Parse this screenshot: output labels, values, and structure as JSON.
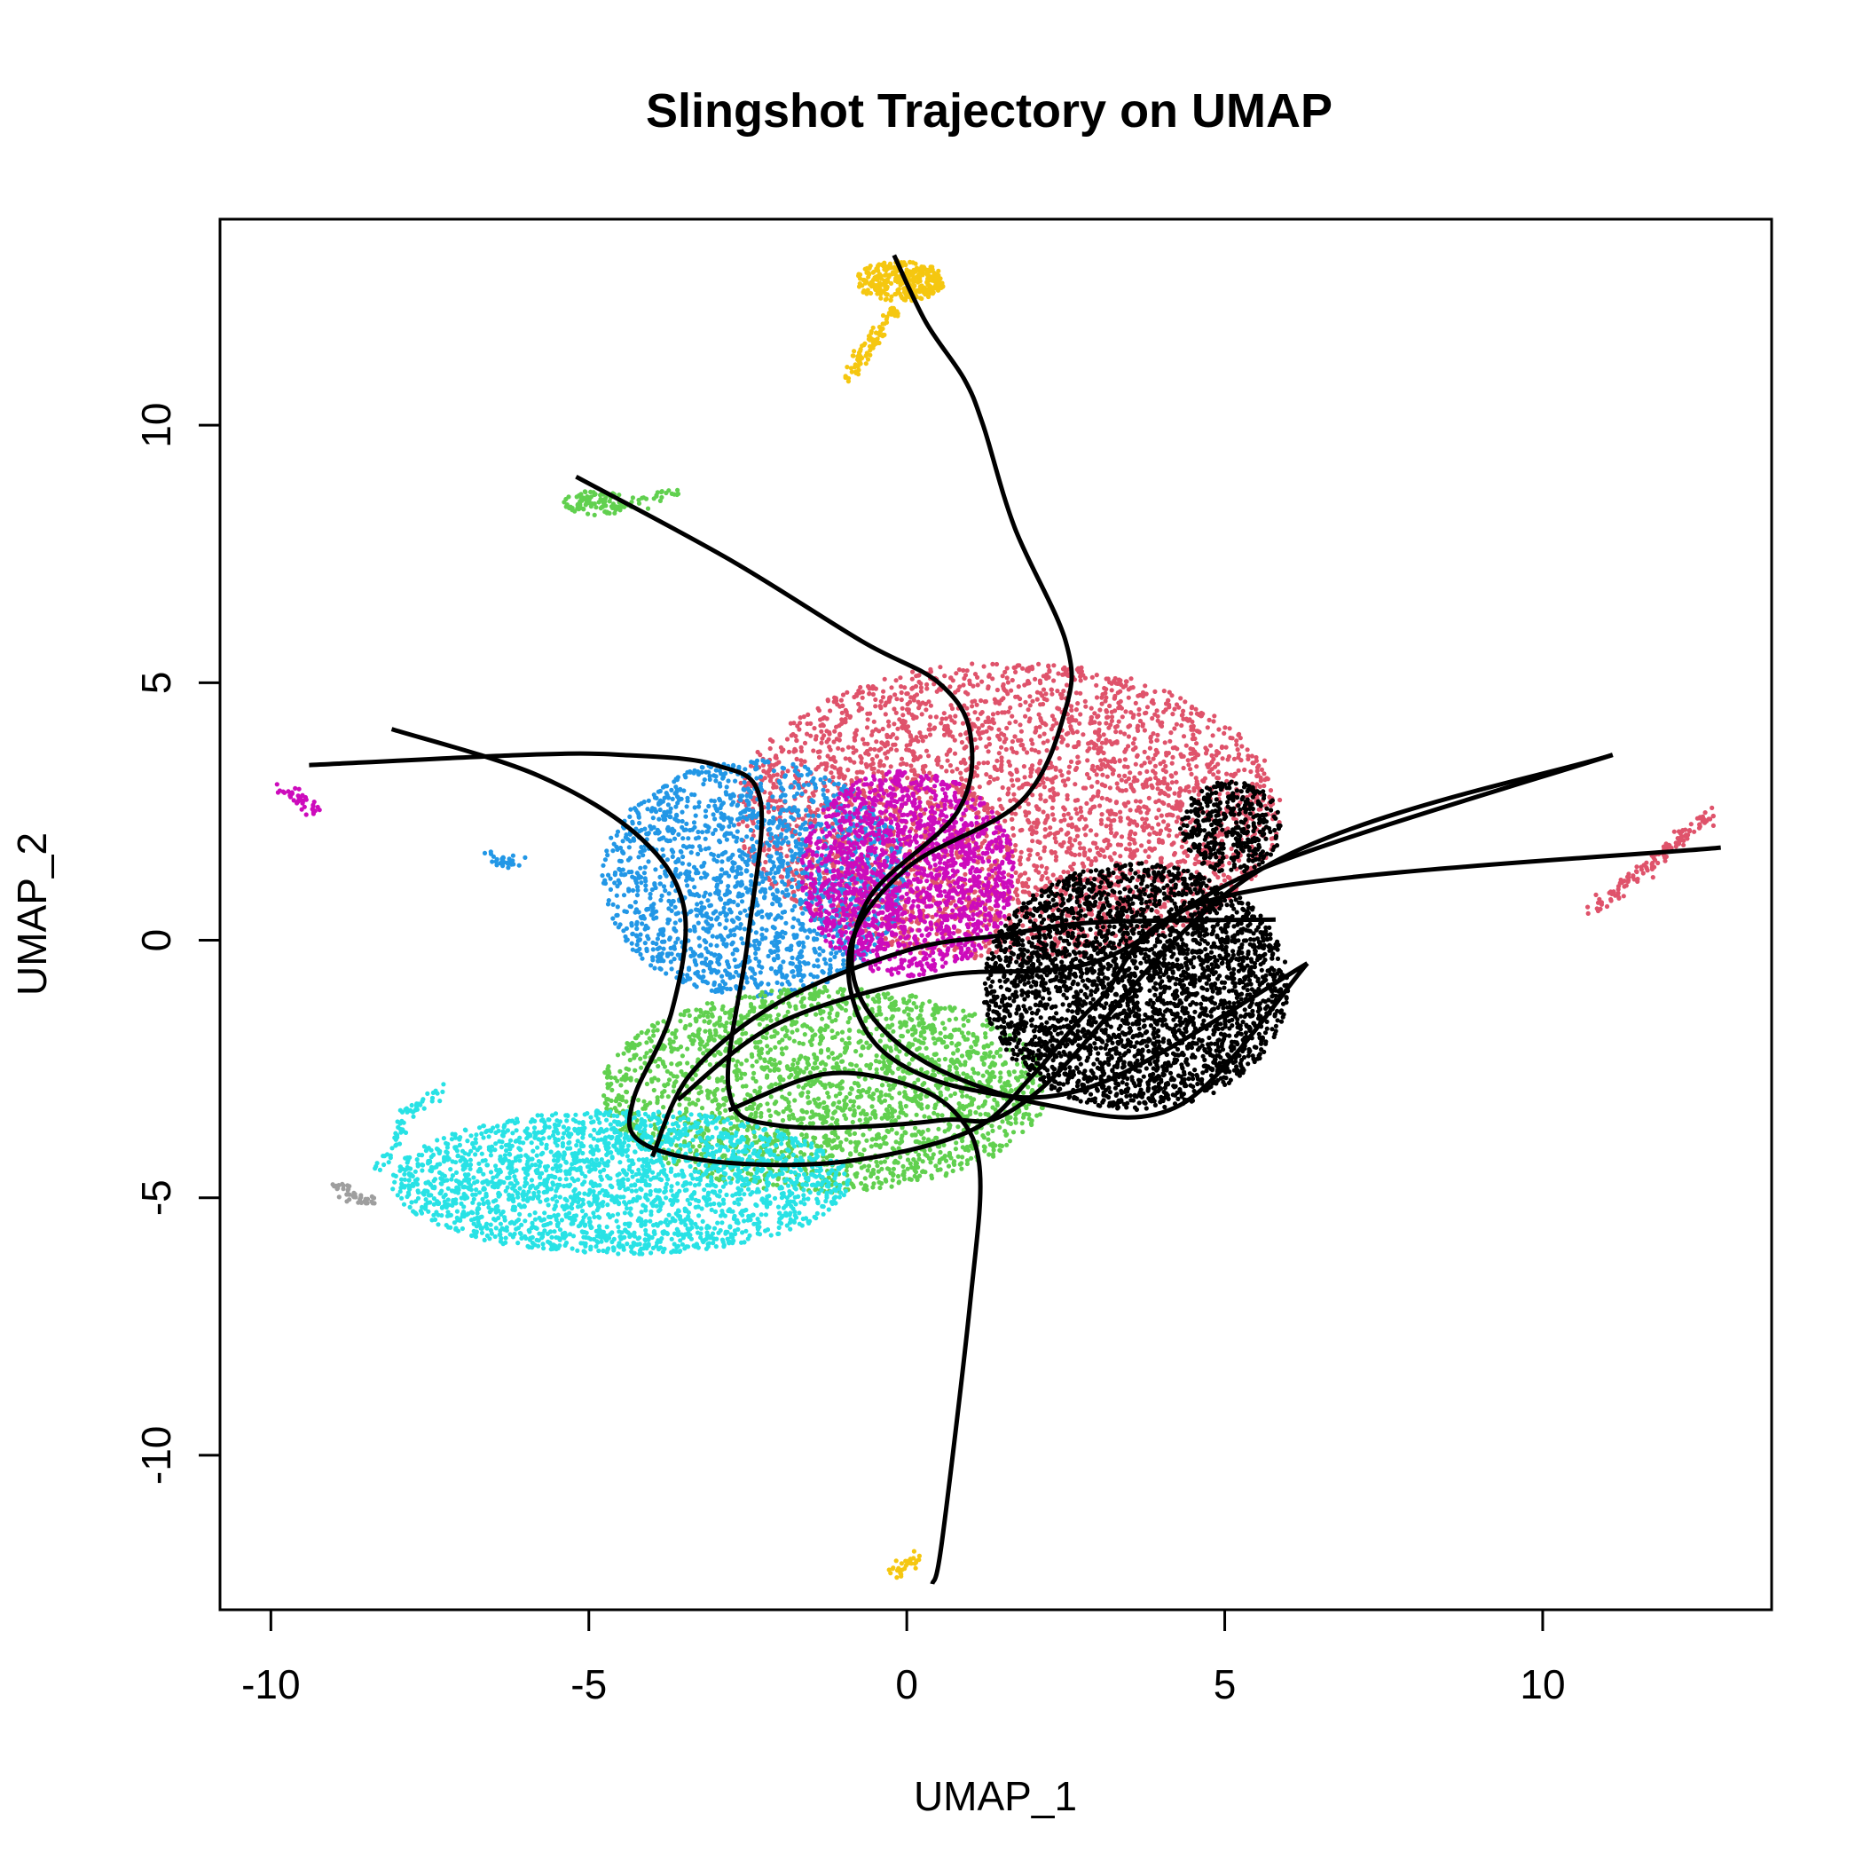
{
  "chart_data": {
    "type": "scatter",
    "title": "Slingshot Trajectory on UMAP",
    "xlabel": "UMAP_1",
    "ylabel": "UMAP_2",
    "xlim": [
      -10.8,
      13.6
    ],
    "ylim": [
      -13.0,
      14.0
    ],
    "xticks": [
      -10,
      -5,
      0,
      5,
      10
    ],
    "yticks": [
      -10,
      -5,
      0,
      5,
      10
    ],
    "grid": false,
    "legend": "none",
    "clusters": [
      {
        "color": "#DF536B",
        "shape": "ellipse",
        "cx": 1.6,
        "cy": 2.5,
        "rx": 4.3,
        "ry": 2.9,
        "n": 3400
      },
      {
        "color": "#2297E6",
        "shape": "ellipse",
        "cx": -2.4,
        "cy": 1.2,
        "rx": 2.4,
        "ry": 2.3,
        "n": 1800
      },
      {
        "color": "#CD0BBC",
        "shape": "ellipse",
        "cx": 0.0,
        "cy": 1.3,
        "rx": 1.7,
        "ry": 2.0,
        "n": 1700
      },
      {
        "color": "#61D04F",
        "shape": "ellipse",
        "cx": -1.3,
        "cy": -2.9,
        "rx": 3.5,
        "ry": 2.0,
        "n": 2400
      },
      {
        "color": "#28E2E5",
        "shape": "ellipse",
        "cx": -4.5,
        "cy": -4.7,
        "rx": 3.6,
        "ry": 1.4,
        "n": 2300
      },
      {
        "color": "#000000",
        "shape": "ellipse",
        "cx": 3.6,
        "cy": -0.9,
        "rx": 2.4,
        "ry": 2.4,
        "n": 3200
      },
      {
        "color": "#000000",
        "shape": "ellipse",
        "cx": 5.1,
        "cy": 2.2,
        "rx": 0.8,
        "ry": 0.9,
        "n": 380
      },
      {
        "color": "#F5C710",
        "shape": "ellipse",
        "cx": -0.1,
        "cy": 12.8,
        "rx": 0.7,
        "ry": 0.4,
        "n": 320
      },
      {
        "color": "#F5C710",
        "shape": "line",
        "from": [
          -0.9,
          10.9
        ],
        "to": [
          -0.2,
          12.3
        ],
        "n": 90
      },
      {
        "color": "#61D04F",
        "shape": "ellipse",
        "cx": -4.9,
        "cy": 8.5,
        "rx": 0.5,
        "ry": 0.25,
        "n": 90
      },
      {
        "color": "#61D04F",
        "shape": "line",
        "from": [
          -4.6,
          8.4
        ],
        "to": [
          -3.6,
          8.7
        ],
        "n": 30
      },
      {
        "color": "#CD0BBC",
        "shape": "line",
        "from": [
          -9.8,
          2.95
        ],
        "to": [
          -9.3,
          2.5
        ],
        "n": 45
      },
      {
        "color": "#2297E6",
        "shape": "line",
        "from": [
          -6.6,
          1.6
        ],
        "to": [
          -6.1,
          1.5
        ],
        "n": 30
      },
      {
        "color": "#28E2E5",
        "shape": "line",
        "from": [
          -8.0,
          -3.4
        ],
        "to": [
          -7.3,
          -2.9
        ],
        "n": 30
      },
      {
        "color": "#28E2E5",
        "shape": "line",
        "from": [
          -8.3,
          -4.5
        ],
        "to": [
          -7.9,
          -3.5
        ],
        "n": 30
      },
      {
        "color": "#9E9E9E",
        "shape": "line",
        "from": [
          -9.0,
          -4.8
        ],
        "to": [
          -8.4,
          -5.1
        ],
        "n": 40
      },
      {
        "color": "#DF536B",
        "shape": "line",
        "from": [
          10.8,
          0.55
        ],
        "to": [
          12.7,
          2.5
        ],
        "n": 130
      },
      {
        "color": "#F5C710",
        "shape": "line",
        "from": [
          -0.25,
          -12.3
        ],
        "to": [
          0.15,
          -12.0
        ],
        "n": 30
      }
    ],
    "curves": [
      [
        [
          -0.2,
          13.3
        ],
        [
          0.3,
          12.0
        ],
        [
          0.9,
          10.9
        ],
        [
          1.2,
          10.0
        ],
        [
          1.7,
          8.0
        ],
        [
          2.5,
          5.8
        ],
        [
          2.5,
          4.5
        ],
        [
          1.8,
          2.7
        ],
        [
          0.0,
          1.4
        ],
        [
          -0.9,
          -0.2
        ],
        [
          -0.5,
          -2.0
        ],
        [
          1.0,
          -2.9
        ],
        [
          3.0,
          -2.8
        ],
        [
          6.3,
          -0.45
        ]
      ],
      [
        [
          -5.2,
          9.0
        ],
        [
          -2.8,
          7.4
        ],
        [
          -0.7,
          5.8
        ],
        [
          0.5,
          5.0
        ],
        [
          1.0,
          4.0
        ],
        [
          0.8,
          2.5
        ],
        [
          -0.6,
          0.8
        ],
        [
          -0.8,
          -0.9
        ],
        [
          0.2,
          -2.3
        ],
        [
          2.2,
          -3.2
        ],
        [
          4.3,
          -3.2
        ],
        [
          6.3,
          -0.45
        ]
      ],
      [
        [
          -9.4,
          3.4
        ],
        [
          -6.0,
          3.6
        ],
        [
          -4.5,
          3.6
        ],
        [
          -3.0,
          3.4
        ],
        [
          -2.3,
          2.7
        ],
        [
          -2.5,
          0.0
        ],
        [
          -2.8,
          -2.9
        ],
        [
          -2.0,
          -3.6
        ],
        [
          0.5,
          -3.5
        ],
        [
          2.0,
          -3.0
        ],
        [
          5.6,
          1.4
        ],
        [
          11.1,
          3.6
        ]
      ],
      [
        [
          -8.1,
          4.1
        ],
        [
          -5.8,
          3.2
        ],
        [
          -4.2,
          2.0
        ],
        [
          -3.5,
          0.6
        ],
        [
          -3.7,
          -1.4
        ],
        [
          -4.3,
          -3.1
        ],
        [
          -4.2,
          -3.9
        ],
        [
          -3.0,
          -4.3
        ],
        [
          -1.0,
          -4.3
        ],
        [
          1.0,
          -3.7
        ],
        [
          2.0,
          -2.6
        ],
        [
          3.0,
          -1.2
        ],
        [
          5.0,
          0.85
        ],
        [
          12.8,
          1.8
        ]
      ],
      [
        [
          -4.0,
          -4.2
        ],
        [
          -3.4,
          -2.6
        ],
        [
          -2.0,
          -1.2
        ],
        [
          0.0,
          -0.2
        ],
        [
          1.5,
          0.1
        ],
        [
          3.0,
          0.35
        ],
        [
          5.8,
          0.4
        ]
      ],
      [
        [
          -3.6,
          -3.1
        ],
        [
          -2.0,
          -1.6
        ],
        [
          0.5,
          -0.7
        ],
        [
          3.0,
          -0.4
        ],
        [
          5.6,
          1.4
        ],
        [
          11.1,
          3.6
        ]
      ],
      [
        [
          -2.8,
          -3.3
        ],
        [
          -1.3,
          -2.6
        ],
        [
          0.0,
          -2.8
        ],
        [
          0.8,
          -3.4
        ],
        [
          1.15,
          -4.5
        ],
        [
          1.0,
          -7.0
        ],
        [
          0.55,
          -11.7
        ],
        [
          0.4,
          -12.5
        ]
      ]
    ]
  }
}
